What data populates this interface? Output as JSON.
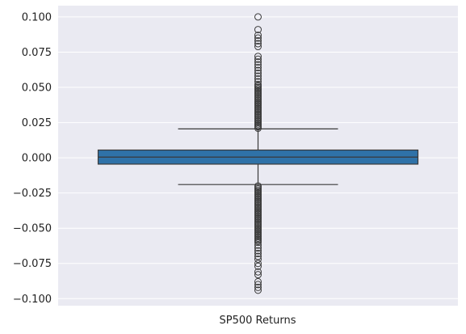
{
  "chart_data": {
    "type": "box",
    "title": "",
    "xlabel": "",
    "ylabel": "",
    "categories": [
      "SP500 Returns"
    ],
    "ylim": [
      -0.105,
      0.108
    ],
    "yticks": [
      -0.1,
      -0.075,
      -0.05,
      -0.025,
      0.0,
      0.025,
      0.05,
      0.075,
      0.1
    ],
    "ytick_labels": [
      "−0.100",
      "−0.075",
      "−0.050",
      "−0.025",
      "0.000",
      "0.025",
      "0.050",
      "0.075",
      "0.100"
    ],
    "grid": true,
    "box": {
      "whisker_low": -0.019,
      "q1": -0.0045,
      "median": 0.0005,
      "q3": 0.0055,
      "whisker_high": 0.0205
    },
    "outliers_high": [
      0.021,
      0.022,
      0.023,
      0.024,
      0.025,
      0.026,
      0.027,
      0.028,
      0.029,
      0.03,
      0.031,
      0.032,
      0.033,
      0.034,
      0.035,
      0.036,
      0.037,
      0.038,
      0.039,
      0.04,
      0.041,
      0.042,
      0.043,
      0.044,
      0.045,
      0.046,
      0.047,
      0.048,
      0.049,
      0.05,
      0.051,
      0.052,
      0.054,
      0.056,
      0.058,
      0.06,
      0.062,
      0.064,
      0.066,
      0.068,
      0.07,
      0.072,
      0.079,
      0.081,
      0.083,
      0.085,
      0.087,
      0.091,
      0.1
    ],
    "outliers_low": [
      -0.02,
      -0.021,
      -0.022,
      -0.023,
      -0.024,
      -0.025,
      -0.026,
      -0.027,
      -0.028,
      -0.029,
      -0.03,
      -0.031,
      -0.032,
      -0.033,
      -0.034,
      -0.035,
      -0.036,
      -0.037,
      -0.038,
      -0.039,
      -0.04,
      -0.041,
      -0.042,
      -0.043,
      -0.044,
      -0.045,
      -0.046,
      -0.047,
      -0.048,
      -0.049,
      -0.05,
      -0.051,
      -0.052,
      -0.053,
      -0.054,
      -0.055,
      -0.056,
      -0.057,
      -0.058,
      -0.059,
      -0.06,
      -0.062,
      -0.064,
      -0.066,
      -0.068,
      -0.07,
      -0.072,
      -0.075,
      -0.077,
      -0.081,
      -0.083,
      -0.088,
      -0.09,
      -0.092,
      -0.094
    ],
    "colors": {
      "background": "#eaeaf2",
      "grid": "#ffffff",
      "box_fill": "#2f72a8",
      "line": "#3a3a3a"
    }
  }
}
